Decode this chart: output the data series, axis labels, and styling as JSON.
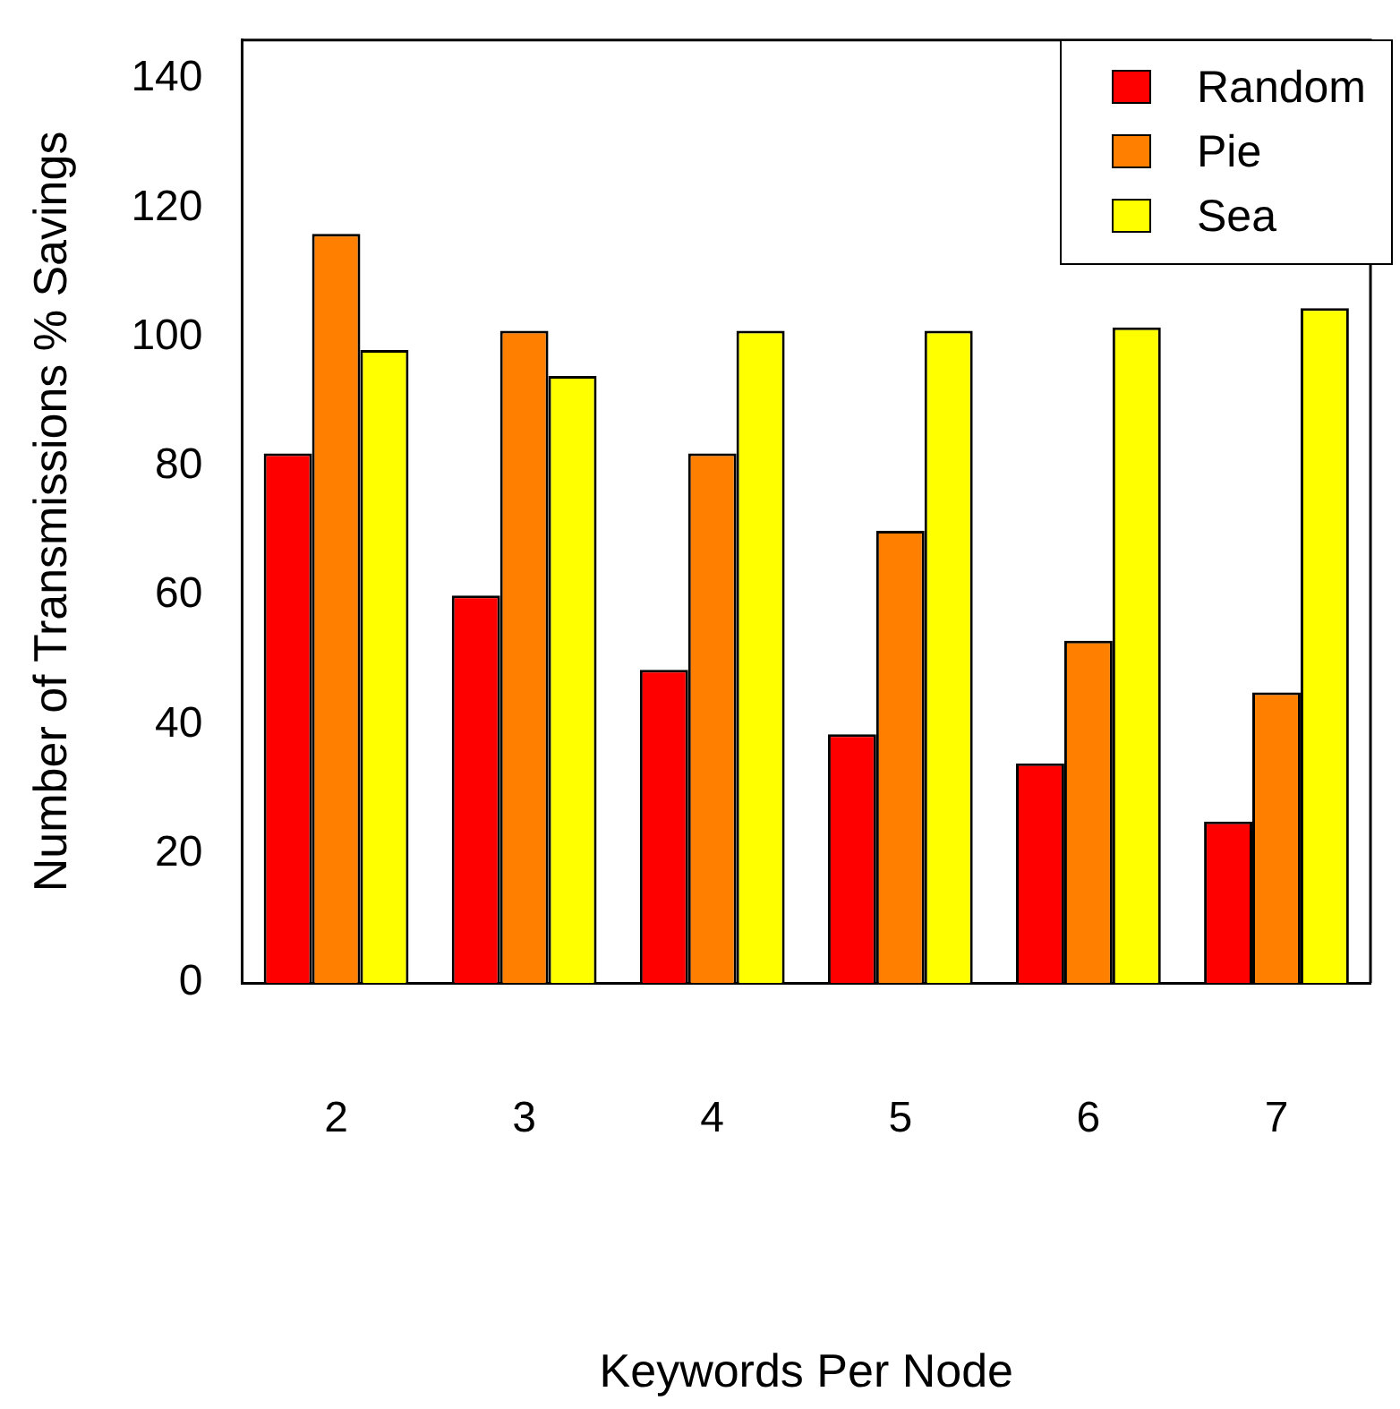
{
  "chart_data": {
    "type": "bar",
    "xlabel": "Keywords Per Node",
    "ylabel": "Number of Transmissions % Savings",
    "categories": [
      "2",
      "3",
      "4",
      "5",
      "6",
      "7"
    ],
    "series": [
      {
        "name": "Random",
        "color": "#ff0000",
        "values": [
          82,
          60,
          48.5,
          38.5,
          34,
          25
        ]
      },
      {
        "name": "Pie",
        "color": "#ff8000",
        "values": [
          116,
          101,
          82,
          70,
          53,
          45
        ]
      },
      {
        "name": "Sea",
        "color": "#ffff00",
        "values": [
          98,
          94,
          101,
          101,
          101.5,
          104.5
        ]
      }
    ],
    "ylim": [
      0,
      146
    ],
    "yticks": [
      0,
      20,
      40,
      60,
      80,
      100,
      120,
      140
    ],
    "grid": false,
    "legend": "top right"
  }
}
